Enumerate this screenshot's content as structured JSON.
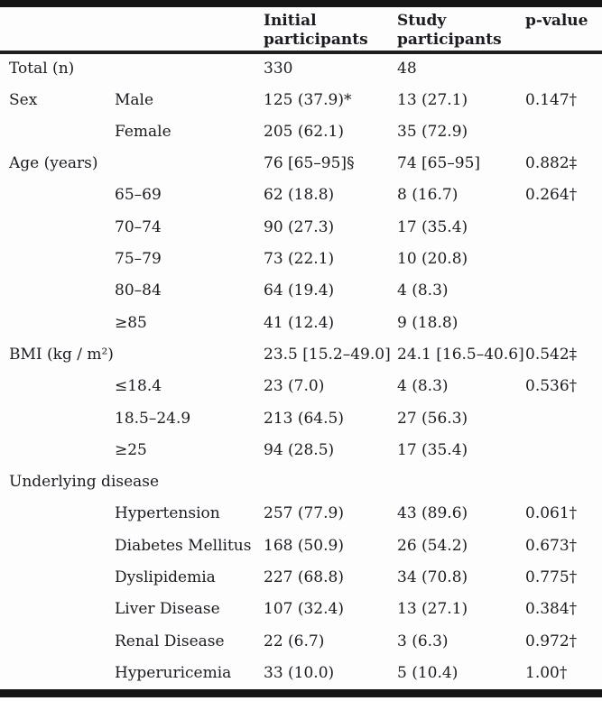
{
  "table": {
    "header": {
      "col_initial": "Initial participants",
      "col_study": "Study participants",
      "col_p": "p-value"
    },
    "rows": [
      {
        "label": "Total (n)",
        "sub": "",
        "initial": "330",
        "study": "48",
        "p": ""
      },
      {
        "label": "Sex",
        "sub": "Male",
        "initial": "125 (37.9)*",
        "study": "13 (27.1)",
        "p": "0.147†"
      },
      {
        "label": "",
        "sub": "Female",
        "initial": "205 (62.1)",
        "study": "35 (72.9)",
        "p": ""
      },
      {
        "label": "Age (years)",
        "sub": "",
        "initial": "76 [65–95]§",
        "study": "74 [65–95]",
        "p": "0.882‡"
      },
      {
        "label": "",
        "sub": "65–69",
        "initial": "62 (18.8)",
        "study": "8 (16.7)",
        "p": "0.264†"
      },
      {
        "label": "",
        "sub": "70–74",
        "initial": "90 (27.3)",
        "study": "17 (35.4)",
        "p": ""
      },
      {
        "label": "",
        "sub": "75–79",
        "initial": "73 (22.1)",
        "study": "10 (20.8)",
        "p": ""
      },
      {
        "label": "",
        "sub": "80–84",
        "initial": "64 (19.4)",
        "study": "4 (8.3)",
        "p": ""
      },
      {
        "label": "",
        "sub": "≥85",
        "initial": "41 (12.4)",
        "study": "9 (18.8)",
        "p": ""
      },
      {
        "label": "BMI (kg / m²)",
        "sub": "",
        "initial": "23.5 [15.2–49.0]",
        "study": "24.1 [16.5–40.6]",
        "p": "0.542‡"
      },
      {
        "label": "",
        "sub": "≤18.4",
        "initial": "23 (7.0)",
        "study": "4 (8.3)",
        "p": "0.536†"
      },
      {
        "label": "",
        "sub": "18.5–24.9",
        "initial": "213 (64.5)",
        "study": "27 (56.3)",
        "p": ""
      },
      {
        "label": "",
        "sub": "≥25",
        "initial": "94 (28.5)",
        "study": "17 (35.4)",
        "p": ""
      },
      {
        "label": "Underlying disease",
        "sub": "",
        "initial": "",
        "study": "",
        "p": ""
      },
      {
        "label": "",
        "sub": "Hypertension",
        "initial": "257 (77.9)",
        "study": "43 (89.6)",
        "p": "0.061†"
      },
      {
        "label": "",
        "sub": "Diabetes Mellitus",
        "initial": "168 (50.9)",
        "study": "26 (54.2)",
        "p": "0.673†"
      },
      {
        "label": "",
        "sub": "Dyslipidemia",
        "initial": "227 (68.8)",
        "study": "34 (70.8)",
        "p": "0.775†"
      },
      {
        "label": "",
        "sub": "Liver Disease",
        "initial": "107 (32.4)",
        "study": "13 (27.1)",
        "p": "0.384†"
      },
      {
        "label": "",
        "sub": "Renal Disease",
        "initial": "22 (6.7)",
        "study": "3 (6.3)",
        "p": "0.972†"
      },
      {
        "label": "",
        "sub": "Hyperuricemia",
        "initial": "33 (10.0)",
        "study": "5 (10.4)",
        "p": "1.00†"
      }
    ],
    "colors": {
      "text": "#1c1b22",
      "bar": "#151515",
      "rule": "#1e1e1e",
      "background": "#fdfdfd"
    }
  }
}
